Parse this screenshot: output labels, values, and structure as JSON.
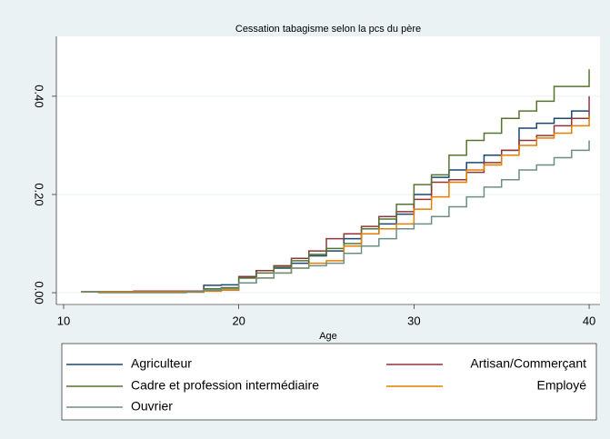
{
  "chart_data": {
    "type": "step",
    "title": "Cessation tabagisme selon la pcs du père",
    "x_label": "Age",
    "x": [
      11,
      12,
      13,
      14,
      15,
      16,
      17,
      18,
      19,
      20,
      21,
      22,
      23,
      24,
      25,
      26,
      27,
      28,
      29,
      30,
      31,
      32,
      33,
      34,
      35,
      36,
      37,
      38,
      39,
      40
    ],
    "series": [
      {
        "name": "Agriculteur",
        "color": "#1a476f",
        "values": [
          0.002,
          0.002,
          0.002,
          0.003,
          0.003,
          0.003,
          0.003,
          0.015,
          0.016,
          0.03,
          0.045,
          0.05,
          0.06,
          0.075,
          0.085,
          0.11,
          0.12,
          0.14,
          0.16,
          0.2,
          0.235,
          0.25,
          0.265,
          0.28,
          0.29,
          0.335,
          0.345,
          0.355,
          0.37,
          0.37
        ]
      },
      {
        "name": "Artisan/Commerçant",
        "color": "#90353b",
        "values": [
          0.002,
          0.002,
          0.002,
          0.003,
          0.003,
          0.003,
          0.003,
          0.008,
          0.01,
          0.033,
          0.045,
          0.055,
          0.07,
          0.085,
          0.11,
          0.12,
          0.135,
          0.155,
          0.165,
          0.19,
          0.225,
          0.23,
          0.245,
          0.265,
          0.29,
          0.31,
          0.32,
          0.34,
          0.355,
          0.4
        ]
      },
      {
        "name": "Cadre et profession intermédiaire",
        "color": "#55752f",
        "values": [
          0.002,
          0.002,
          0.002,
          0.002,
          0.002,
          0.002,
          0.002,
          0.008,
          0.01,
          0.03,
          0.04,
          0.052,
          0.065,
          0.078,
          0.09,
          0.1,
          0.13,
          0.15,
          0.18,
          0.22,
          0.24,
          0.28,
          0.31,
          0.325,
          0.355,
          0.37,
          0.39,
          0.42,
          0.42,
          0.455
        ]
      },
      {
        "name": "Employé",
        "color": "#e37e00",
        "values": [
          0.002,
          0.002,
          0.002,
          0.002,
          0.002,
          0.002,
          0.002,
          0.003,
          0.005,
          0.02,
          0.03,
          0.04,
          0.05,
          0.06,
          0.065,
          0.095,
          0.12,
          0.13,
          0.14,
          0.17,
          0.195,
          0.225,
          0.25,
          0.26,
          0.28,
          0.3,
          0.315,
          0.325,
          0.34,
          0.36
        ]
      },
      {
        "name": "Ouvrier",
        "color": "#6e8e84",
        "values": [
          0.002,
          0,
          0,
          0,
          0,
          0,
          0.001,
          0.005,
          0.008,
          0.02,
          0.03,
          0.04,
          0.05,
          0.055,
          0.06,
          0.08,
          0.095,
          0.11,
          0.13,
          0.14,
          0.155,
          0.175,
          0.195,
          0.215,
          0.23,
          0.25,
          0.26,
          0.275,
          0.29,
          0.31
        ]
      }
    ],
    "xlim": [
      9.585,
      40.62
    ],
    "xticks": [
      10,
      20,
      30,
      40
    ],
    "ylim": [
      -0.024,
      0.522
    ],
    "yticks": [
      {
        "value": 0,
        "label": "0.00"
      },
      {
        "value": 0.2,
        "label": "0.20"
      },
      {
        "value": 0.4,
        "label": "0.40"
      }
    ],
    "grid": true,
    "legend": "bottom"
  }
}
